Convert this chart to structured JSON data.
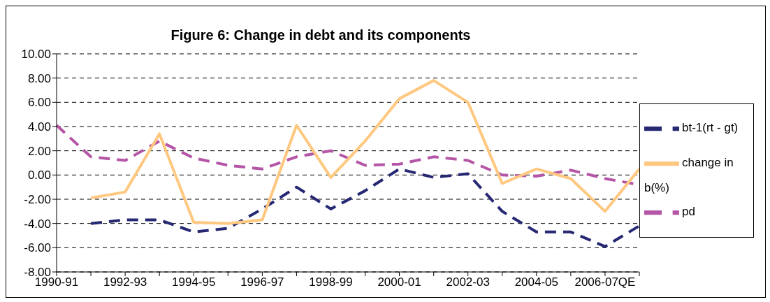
{
  "chart_data": {
    "type": "line",
    "title": "Figure 6: Change in debt and its components",
    "categories": [
      "1990-91",
      null,
      "1992-93",
      null,
      "1994-95",
      null,
      "1996-97",
      null,
      "1998-99",
      null,
      "2000-01",
      null,
      "2002-03",
      null,
      "2004-05",
      null,
      "2006-07QE",
      null
    ],
    "series": [
      {
        "name": "bt-1(rt - gt)",
        "color": "#262873",
        "line_style": "dashed",
        "values": [
          null,
          -4.0,
          -3.7,
          -3.7,
          -4.7,
          -4.4,
          -2.8,
          -1.0,
          -2.8,
          -1.3,
          0.5,
          -0.2,
          0.1,
          -3.0,
          -4.7,
          -4.7,
          -5.9,
          -4.2
        ]
      },
      {
        "name": "pd",
        "color": "#b455a6",
        "line_style": "dashed",
        "values": [
          4.1,
          1.5,
          1.2,
          2.8,
          1.4,
          0.8,
          0.5,
          1.5,
          2.0,
          0.8,
          0.9,
          1.5,
          1.2,
          0.0,
          -0.1,
          0.4,
          -0.3,
          -0.8
        ]
      },
      {
        "name": "change in b(%)",
        "color": "#ffc880",
        "line_style": "solid",
        "values": [
          null,
          -1.9,
          -1.4,
          3.4,
          -3.9,
          -4.0,
          -3.7,
          4.1,
          -0.2,
          2.8,
          6.3,
          7.8,
          6.0,
          -0.7,
          0.5,
          -0.3,
          -3.0,
          0.5
        ]
      }
    ],
    "ylim": [
      -8,
      10
    ],
    "yticks": [
      {
        "value": -8,
        "label": "-8.00"
      },
      {
        "value": -6,
        "label": "-6.00"
      },
      {
        "value": -4,
        "label": "-4.00"
      },
      {
        "value": -2,
        "label": "-2.00"
      },
      {
        "value": 0,
        "label": "0.00"
      },
      {
        "value": 2,
        "label": "2.00"
      },
      {
        "value": 4,
        "label": "4.00"
      },
      {
        "value": 6,
        "label": "6.00"
      },
      {
        "value": 8,
        "label": "8.00"
      },
      {
        "value": 10,
        "label": "10.00"
      }
    ],
    "grid": "y",
    "legend": "right",
    "marker": "none"
  }
}
